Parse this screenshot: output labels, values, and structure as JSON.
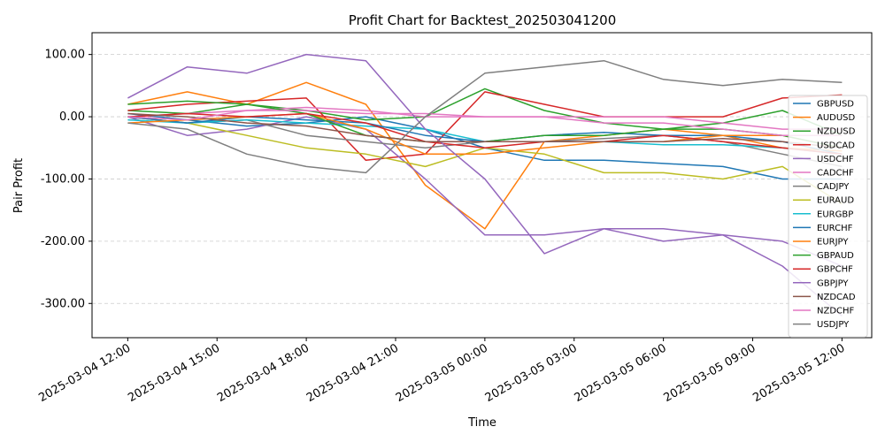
{
  "chart_data": {
    "type": "line",
    "title": "Profit Chart for Backtest_202503041200",
    "xlabel": "Time",
    "ylabel": "Pair Profit",
    "x_ticks": [
      "2025-03-04 12:00",
      "2025-03-04 15:00",
      "2025-03-04 18:00",
      "2025-03-04 21:00",
      "2025-03-05 00:00",
      "2025-03-05 03:00",
      "2025-03-05 06:00",
      "2025-03-05 09:00",
      "2025-03-05 12:00"
    ],
    "x_tick_hours": [
      0,
      3,
      6,
      9,
      12,
      15,
      18,
      21,
      24
    ],
    "xlim": [
      -1.2,
      25.0
    ],
    "y_ticks": [
      "100.00",
      "0.00",
      "-100.00",
      "-200.00",
      "-300.00"
    ],
    "y_tick_values": [
      100,
      0,
      -100,
      -200,
      -300
    ],
    "ylim": [
      -355,
      135
    ],
    "grid": true,
    "legend_position": "right",
    "x_hours": [
      0,
      2,
      4,
      6,
      8,
      10,
      12,
      14,
      16,
      18,
      20,
      22,
      24
    ],
    "series": [
      {
        "name": "GBPUSD",
        "color": "#1f77b4",
        "values": [
          5,
          -5,
          -15,
          -10,
          0,
          -20,
          -50,
          -70,
          -70,
          -75,
          -80,
          -100,
          -100
        ]
      },
      {
        "name": "AUDUSD",
        "color": "#ff7f0e",
        "values": [
          20,
          40,
          20,
          55,
          20,
          -110,
          -180,
          -40,
          -30,
          -20,
          -30,
          -50,
          -55
        ]
      },
      {
        "name": "NZDUSD",
        "color": "#2ca02c",
        "values": [
          10,
          5,
          20,
          10,
          -5,
          0,
          45,
          10,
          -10,
          -20,
          -10,
          10,
          -30
        ]
      },
      {
        "name": "USDCAD",
        "color": "#d62728",
        "values": [
          10,
          20,
          25,
          30,
          -70,
          -60,
          40,
          20,
          0,
          0,
          0,
          30,
          35
        ]
      },
      {
        "name": "USDCHF",
        "color": "#9467bd",
        "values": [
          0,
          -30,
          -20,
          0,
          -20,
          -100,
          -190,
          -190,
          -180,
          -180,
          -190,
          -240,
          -320
        ]
      },
      {
        "name": "CADCHF",
        "color": "#e377c2",
        "values": [
          0,
          5,
          10,
          15,
          10,
          0,
          0,
          0,
          0,
          0,
          -10,
          -20,
          -20
        ]
      },
      {
        "name": "CADJPY",
        "color": "#7f7f7f",
        "values": [
          0,
          -10,
          -5,
          -30,
          -40,
          -50,
          -40,
          -40,
          -35,
          -30,
          -40,
          -60,
          -80
        ]
      },
      {
        "name": "EURAUD",
        "color": "#bcbd22",
        "values": [
          0,
          -10,
          -30,
          -50,
          -60,
          -80,
          -50,
          -60,
          -90,
          -90,
          -100,
          -80,
          -140
        ]
      },
      {
        "name": "EURGBP",
        "color": "#17becf",
        "values": [
          -5,
          -10,
          -5,
          -10,
          -15,
          -20,
          -40,
          -40,
          -40,
          -45,
          -45,
          -50,
          -60
        ]
      },
      {
        "name": "EURCHF",
        "color": "#1f77b4",
        "values": [
          0,
          -10,
          0,
          -5,
          -10,
          -30,
          -40,
          -30,
          -25,
          -30,
          -30,
          -40,
          -60
        ]
      },
      {
        "name": "EURJPY",
        "color": "#ff7f0e",
        "values": [
          -10,
          -5,
          0,
          5,
          -20,
          -60,
          -60,
          -50,
          -40,
          -40,
          -30,
          -30,
          -50
        ]
      },
      {
        "name": "GBPAUD",
        "color": "#2ca02c",
        "values": [
          20,
          25,
          20,
          5,
          -30,
          -40,
          -40,
          -30,
          -30,
          -20,
          -20,
          -30,
          -50
        ]
      },
      {
        "name": "GBPCHF",
        "color": "#d62728",
        "values": [
          0,
          5,
          0,
          5,
          -10,
          -40,
          -50,
          -40,
          -40,
          -30,
          -40,
          -50,
          -60
        ]
      },
      {
        "name": "GBPJPY",
        "color": "#9467bd",
        "values": [
          30,
          80,
          70,
          100,
          90,
          -20,
          -100,
          -220,
          -180,
          -200,
          -190,
          -200,
          -240
        ]
      },
      {
        "name": "NZDCAD",
        "color": "#8c564b",
        "values": [
          5,
          0,
          -10,
          -15,
          -30,
          -40,
          -40,
          -40,
          -40,
          -40,
          -35,
          -40,
          -50
        ]
      },
      {
        "name": "NZDCHF",
        "color": "#e377c2",
        "values": [
          0,
          -5,
          10,
          10,
          5,
          5,
          0,
          0,
          -10,
          -10,
          -20,
          -30,
          -30
        ]
      },
      {
        "name": "USDJPY",
        "color": "#7f7f7f",
        "values": [
          -10,
          -20,
          -60,
          -80,
          -90,
          0,
          70,
          80,
          90,
          60,
          50,
          60,
          55
        ]
      }
    ]
  }
}
